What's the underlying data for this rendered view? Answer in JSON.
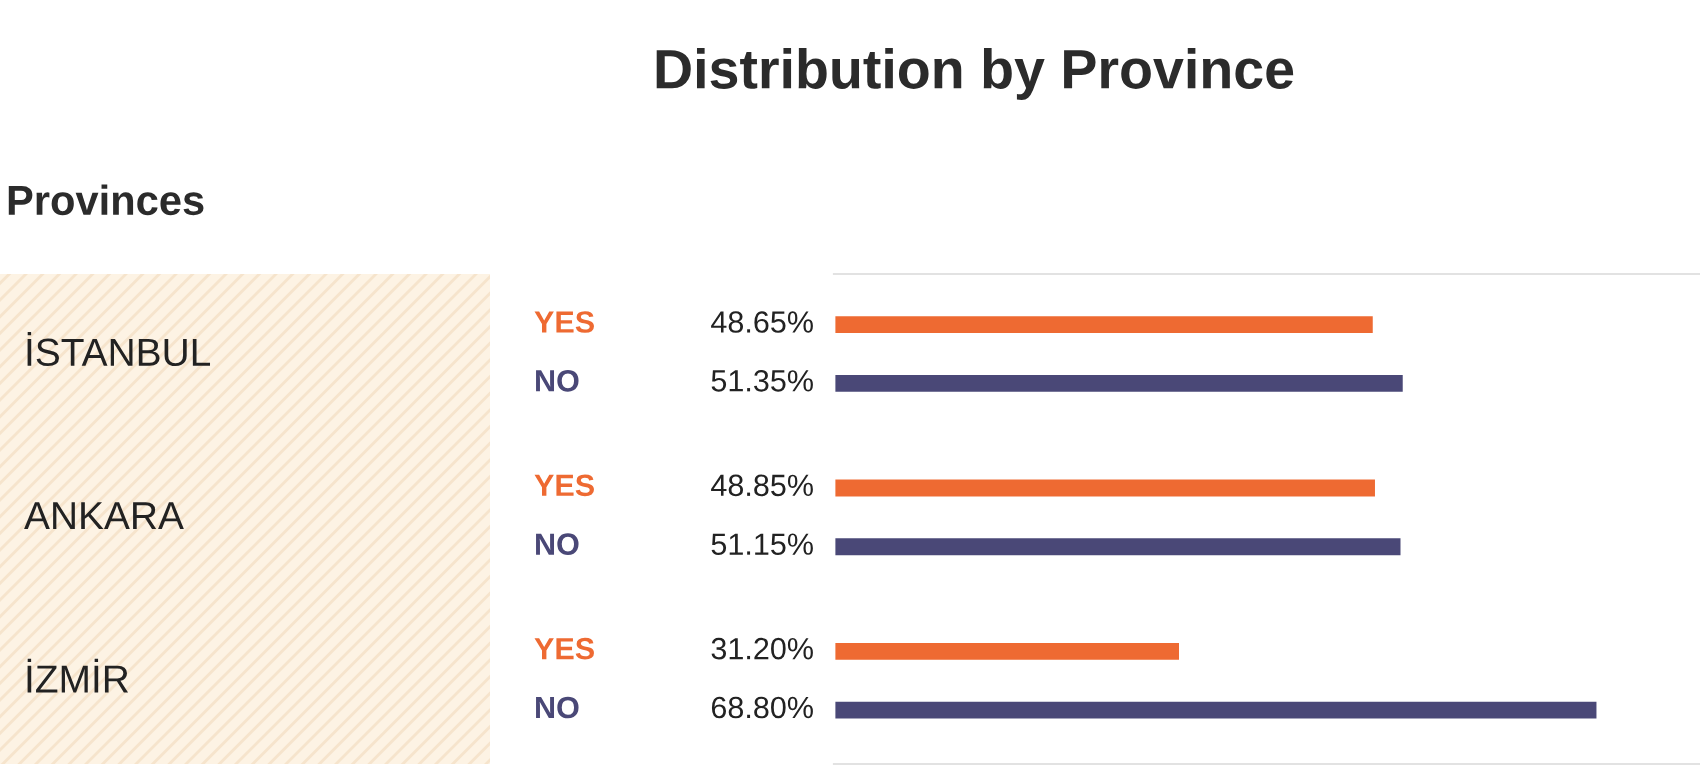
{
  "chart_data": {
    "type": "bar",
    "orientation": "horizontal",
    "title": "Distribution by Province",
    "ylabel": "Provinces",
    "categories": [
      "İSTANBUL",
      "ANKARA",
      "İZMİR"
    ],
    "series": [
      {
        "name": "YES",
        "color": "#ee6a32",
        "values": [
          48.65,
          48.85,
          31.2
        ],
        "value_labels": [
          "48.65%",
          "48.85%",
          "31.20%"
        ]
      },
      {
        "name": "NO",
        "color": "#4a4877",
        "values": [
          51.35,
          51.15,
          68.8
        ],
        "value_labels": [
          "51.35%",
          "51.15%",
          "68.80%"
        ]
      }
    ],
    "xlim": [
      0,
      78
    ],
    "tick_labels": "y",
    "legend": false
  }
}
